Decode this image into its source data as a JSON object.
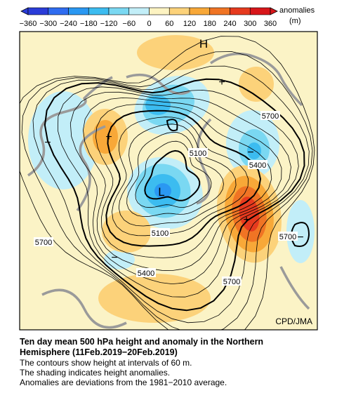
{
  "legend": {
    "ticks": [
      "−360",
      "−300",
      "−240",
      "−180",
      "−120",
      "−60",
      "0",
      "60",
      "120",
      "180",
      "240",
      "300",
      "360"
    ],
    "label": "anomalies",
    "unit": "(m)",
    "colors": [
      "#2a3cd8",
      "#2f6cf0",
      "#2a98f2",
      "#3cbcf0",
      "#7ad8f2",
      "#c2eef8",
      "#ffffff",
      "#fdf3c2",
      "#fcd27a",
      "#f8a838",
      "#f07424",
      "#e63a1e",
      "#d8161a"
    ]
  },
  "map": {
    "high": "H",
    "low": "L",
    "contour_labels": [
      "5700",
      "5100",
      "5400",
      "5700",
      "5100",
      "5700",
      "5400",
      "5700"
    ],
    "plus": "+",
    "minus": "−",
    "credit": "CPD/JMA"
  },
  "caption": {
    "title_lines": [
      "Ten day mean 500 hPa height and anomaly in the Northern",
      "Hemisphere (11Feb.2019−20Feb.2019)"
    ],
    "lines": [
      "The contours show height at intervals of 60 m.",
      "The shading indicates height anomalies.",
      "Anomalies are deviations from the 1981−2010 average."
    ]
  }
}
